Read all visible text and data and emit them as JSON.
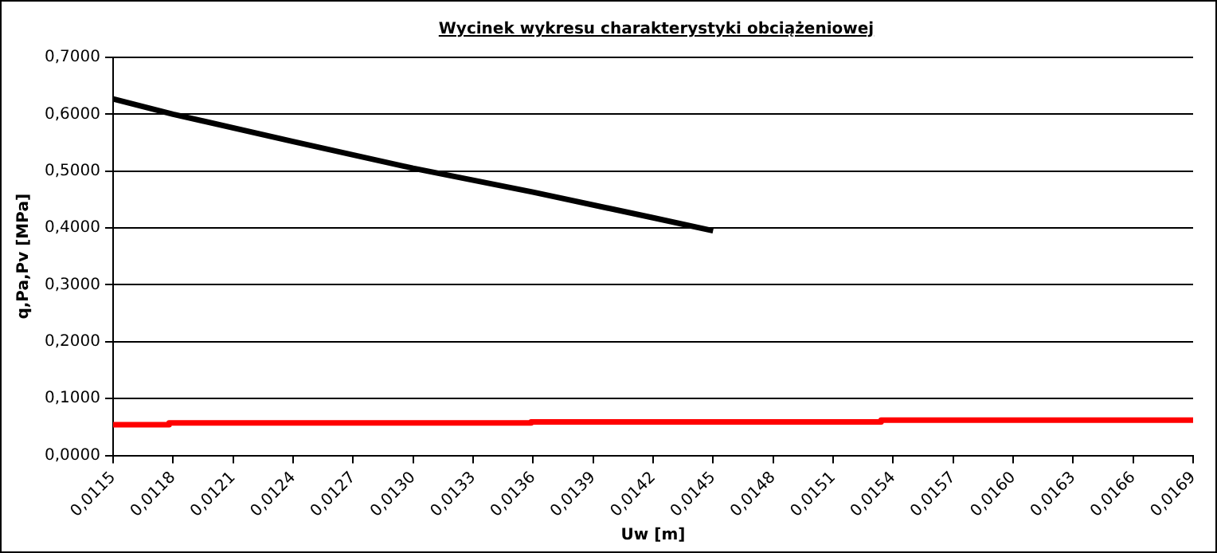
{
  "chart_data": {
    "type": "line",
    "title": "Wycinek wykresu charakterystyki obciążeniowej",
    "xlabel": "Uw [m]",
    "ylabel": "q,Pa,Pv [MPa]",
    "series": [
      {
        "color": "#000000",
        "x": [
          0.0115,
          0.0118,
          0.0124,
          0.013,
          0.0136,
          0.0142,
          0.0145
        ],
        "values": [
          0.627,
          0.6,
          0.552,
          0.505,
          0.463,
          0.418,
          0.395
        ]
      },
      {
        "type": "step",
        "color": "#ff0000",
        "x": [
          0.0115,
          0.01178,
          0.01359,
          0.01534,
          0.0169
        ],
        "values": [
          0.054,
          0.057,
          0.059,
          0.062,
          0.062
        ]
      }
    ],
    "xlim": [
      0.0115,
      0.0169
    ],
    "xticks": [
      {
        "value": 0.0115,
        "label": "0,0115"
      },
      {
        "value": 0.0118,
        "label": "0,0118"
      },
      {
        "value": 0.0121,
        "label": "0,0121"
      },
      {
        "value": 0.0124,
        "label": "0,0124"
      },
      {
        "value": 0.0127,
        "label": "0,0127"
      },
      {
        "value": 0.013,
        "label": "0,0130"
      },
      {
        "value": 0.0133,
        "label": "0,0133"
      },
      {
        "value": 0.0136,
        "label": "0,0136"
      },
      {
        "value": 0.0139,
        "label": "0,0139"
      },
      {
        "value": 0.0142,
        "label": "0,0142"
      },
      {
        "value": 0.0145,
        "label": "0,0145"
      },
      {
        "value": 0.0148,
        "label": "0,0148"
      },
      {
        "value": 0.0151,
        "label": "0,0151"
      },
      {
        "value": 0.0154,
        "label": "0,0154"
      },
      {
        "value": 0.0157,
        "label": "0,0157"
      },
      {
        "value": 0.016,
        "label": "0,0160"
      },
      {
        "value": 0.0163,
        "label": "0,0163"
      },
      {
        "value": 0.0166,
        "label": "0,0166"
      },
      {
        "value": 0.0169,
        "label": "0,0169"
      }
    ],
    "ylim": [
      0,
      0.7
    ],
    "yticks": [
      {
        "value": 0,
        "label": "0,0000"
      },
      {
        "value": 0.1,
        "label": "0,1000"
      },
      {
        "value": 0.2,
        "label": "0,2000"
      },
      {
        "value": 0.3,
        "label": "0,3000"
      },
      {
        "value": 0.4,
        "label": "0,4000"
      },
      {
        "value": 0.5,
        "label": "0,5000"
      },
      {
        "value": 0.6,
        "label": "0,6000"
      },
      {
        "value": 0.7,
        "label": "0,7000"
      }
    ],
    "grid": "y",
    "legend": false,
    "marker": "none"
  }
}
